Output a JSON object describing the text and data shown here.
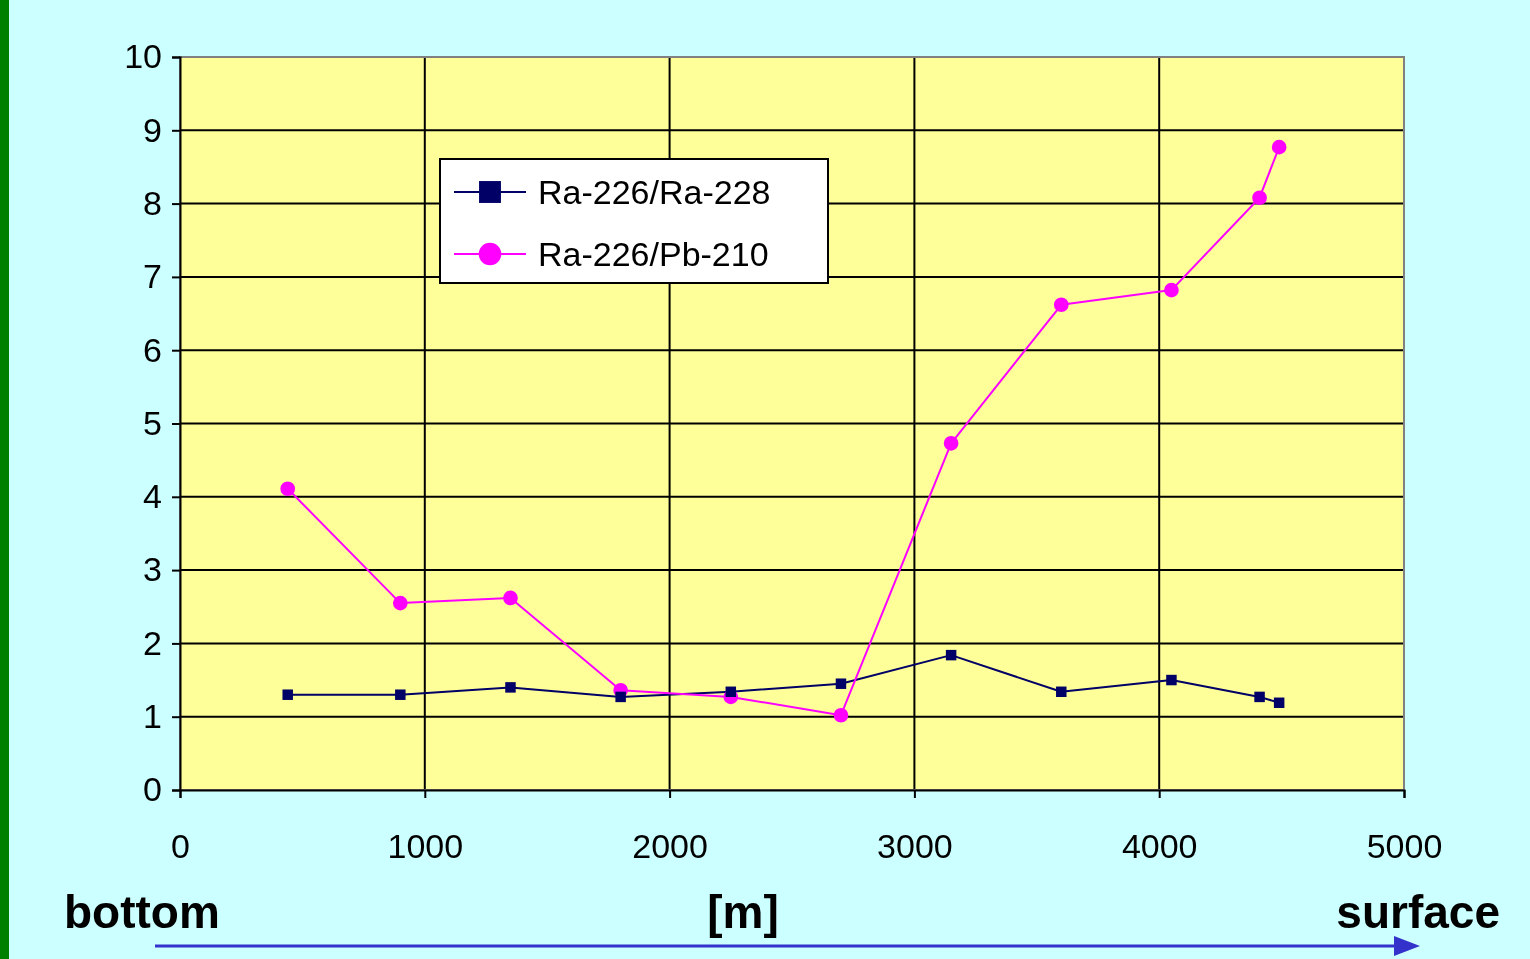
{
  "chart_data": {
    "type": "line",
    "x": [
      440,
      900,
      1350,
      1800,
      2250,
      2700,
      3150,
      3600,
      4050,
      4410,
      4490
    ],
    "series": [
      {
        "name": "Ra-226/Ra-228",
        "color": "#000066",
        "marker": "square",
        "values": [
          1.3,
          1.3,
          1.4,
          1.27,
          1.34,
          1.45,
          1.84,
          1.34,
          1.5,
          1.27,
          1.19
        ]
      },
      {
        "name": "Ra-226/Pb-210",
        "color": "#ff00ff",
        "marker": "circle",
        "values": [
          4.11,
          2.55,
          2.62,
          1.36,
          1.27,
          1.02,
          4.73,
          6.62,
          6.82,
          8.08,
          8.77
        ]
      }
    ],
    "xlim": [
      0,
      5000
    ],
    "xticks": [
      0,
      1000,
      2000,
      3000,
      4000,
      5000
    ],
    "ylim": [
      0,
      10
    ],
    "yticks": [
      0,
      1,
      2,
      3,
      4,
      5,
      6,
      7,
      8,
      9,
      10
    ],
    "grid": true,
    "legend": "top left",
    "line_style": "solid",
    "annotations": [
      "bottom",
      "[m]",
      "surface"
    ]
  }
}
